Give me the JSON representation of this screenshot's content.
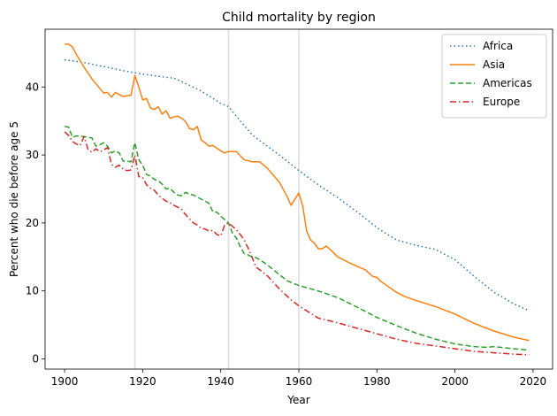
{
  "chart_data": {
    "type": "line",
    "title": "Child mortality by region",
    "xlabel": "Year",
    "ylabel": "Percent who die before age 5",
    "xlim": [
      1895,
      2025
    ],
    "ylim": [
      -1.5,
      48.5
    ],
    "xticks": [
      1900,
      1920,
      1940,
      1960,
      1980,
      2000,
      2020
    ],
    "yticks": [
      0,
      10,
      20,
      30,
      40
    ],
    "grid": false,
    "legend_position": "top-right",
    "vlines": [
      1918,
      1942,
      1960
    ],
    "vline_color": "#dcdcdc",
    "series": [
      {
        "name": "Africa",
        "color": "#1f77b4",
        "style": "dotted",
        "x": [
          1900,
          1905,
          1910,
          1915,
          1920,
          1925,
          1928,
          1930,
          1935,
          1940,
          1942,
          1945,
          1948,
          1950,
          1955,
          1960,
          1965,
          1970,
          1975,
          1980,
          1985,
          1990,
          1995,
          2000,
          2005,
          2010,
          2015,
          2019
        ],
        "y": [
          44.0,
          43.6,
          43.0,
          42.4,
          41.9,
          41.5,
          41.3,
          40.8,
          39.4,
          37.6,
          37.1,
          35.0,
          33.0,
          32.1,
          30.0,
          27.7,
          25.6,
          23.7,
          21.6,
          19.3,
          17.5,
          16.7,
          16.1,
          14.6,
          12.1,
          9.8,
          8.1,
          7.1
        ]
      },
      {
        "name": "Asia",
        "color": "#ff7f0e",
        "style": "solid",
        "x": [
          1900,
          1901,
          1902,
          1903,
          1905,
          1907,
          1909,
          1910,
          1911,
          1912,
          1913,
          1915,
          1917,
          1918,
          1919,
          1920,
          1921,
          1922,
          1923,
          1924,
          1925,
          1926,
          1927,
          1928,
          1929,
          1930,
          1931,
          1932,
          1933,
          1934,
          1935,
          1936,
          1937,
          1938,
          1940,
          1941,
          1942,
          1943,
          1944,
          1946,
          1948,
          1950,
          1952,
          1955,
          1957,
          1958,
          1959,
          1960,
          1961,
          1962,
          1963,
          1964,
          1965,
          1966,
          1967,
          1968,
          1970,
          1972,
          1975,
          1977,
          1978,
          1979,
          1980,
          1981,
          1983,
          1985,
          1987,
          1990,
          1995,
          2000,
          2005,
          2010,
          2015,
          2019
        ],
        "y": [
          46.3,
          46.3,
          45.9,
          44.8,
          42.9,
          41.2,
          39.8,
          39.1,
          39.2,
          38.5,
          39.2,
          38.6,
          38.8,
          41.7,
          40.0,
          38.1,
          38.3,
          36.9,
          36.7,
          37.1,
          36.0,
          36.5,
          35.4,
          35.6,
          35.7,
          35.4,
          34.9,
          33.9,
          33.7,
          34.2,
          32.2,
          31.8,
          31.3,
          31.4,
          30.6,
          30.3,
          30.5,
          30.5,
          30.5,
          29.3,
          29.0,
          29.0,
          28.0,
          26.0,
          23.9,
          22.6,
          23.5,
          24.4,
          22.5,
          18.8,
          17.5,
          17.0,
          16.2,
          16.2,
          16.6,
          16.1,
          15.0,
          14.4,
          13.6,
          13.1,
          12.6,
          12.1,
          12.0,
          11.4,
          10.6,
          9.8,
          9.2,
          8.6,
          7.7,
          6.6,
          5.2,
          4.1,
          3.2,
          2.7
        ]
      },
      {
        "name": "Americas",
        "color": "#2ca02c",
        "style": "dashed",
        "x": [
          1900,
          1901,
          1902,
          1903,
          1905,
          1907,
          1908,
          1909,
          1910,
          1911,
          1912,
          1913,
          1914,
          1915,
          1916,
          1917,
          1918,
          1919,
          1920,
          1921,
          1922,
          1923,
          1924,
          1925,
          1926,
          1927,
          1928,
          1929,
          1930,
          1931,
          1932,
          1933,
          1934,
          1935,
          1937,
          1938,
          1939,
          1940,
          1941,
          1942,
          1943,
          1944,
          1945,
          1946,
          1947,
          1948,
          1949,
          1950,
          1952,
          1955,
          1957,
          1960,
          1965,
          1970,
          1975,
          1980,
          1985,
          1990,
          1995,
          2000,
          2005,
          2008,
          2010,
          2015,
          2019
        ],
        "y": [
          34.2,
          34.1,
          32.6,
          32.8,
          32.7,
          32.5,
          31.3,
          31.5,
          31.8,
          31.3,
          30.3,
          30.6,
          30.3,
          29.1,
          29.1,
          29.0,
          31.8,
          29.3,
          28.5,
          27.1,
          26.9,
          26.4,
          26.2,
          25.7,
          25.0,
          25.1,
          24.5,
          24.1,
          24.0,
          24.5,
          24.2,
          24.1,
          23.8,
          23.5,
          22.9,
          21.6,
          21.6,
          21.0,
          20.5,
          20.0,
          18.5,
          17.8,
          16.5,
          15.5,
          15.3,
          15.0,
          14.9,
          14.6,
          13.8,
          12.4,
          11.5,
          10.8,
          10.0,
          9.0,
          7.6,
          6.1,
          4.9,
          3.8,
          2.9,
          2.2,
          1.8,
          1.7,
          1.8,
          1.5,
          1.3
        ]
      },
      {
        "name": "Europe",
        "color": "#d62728",
        "style": "dashdot",
        "x": [
          1900,
          1901,
          1902,
          1903,
          1904,
          1905,
          1906,
          1907,
          1908,
          1909,
          1910,
          1911,
          1912,
          1913,
          1914,
          1915,
          1916,
          1917,
          1918,
          1919,
          1920,
          1921,
          1922,
          1923,
          1924,
          1925,
          1926,
          1927,
          1928,
          1929,
          1930,
          1931,
          1932,
          1933,
          1934,
          1935,
          1936,
          1937,
          1938,
          1939,
          1940,
          1941,
          1942,
          1943,
          1944,
          1945,
          1946,
          1947,
          1948,
          1949,
          1950,
          1952,
          1955,
          1958,
          1960,
          1965,
          1970,
          1975,
          1980,
          1985,
          1990,
          1995,
          2000,
          2005,
          2010,
          2015,
          2019
        ],
        "y": [
          33.4,
          32.9,
          32.0,
          31.6,
          31.4,
          32.7,
          30.8,
          30.4,
          30.9,
          30.5,
          30.7,
          31.1,
          28.6,
          28.2,
          28.5,
          27.9,
          27.7,
          27.8,
          30.0,
          26.8,
          26.7,
          25.6,
          25.1,
          24.8,
          24.1,
          23.6,
          23.2,
          23.0,
          22.6,
          22.3,
          22.0,
          21.2,
          20.6,
          20.0,
          19.7,
          19.2,
          19.1,
          18.8,
          18.9,
          18.3,
          18.1,
          19.7,
          20.0,
          19.5,
          19.0,
          18.3,
          17.5,
          16.3,
          15.0,
          13.5,
          13.1,
          12.2,
          10.3,
          8.7,
          7.8,
          6.0,
          5.3,
          4.5,
          3.7,
          2.9,
          2.3,
          1.9,
          1.5,
          1.1,
          0.9,
          0.7,
          0.6
        ]
      }
    ]
  }
}
